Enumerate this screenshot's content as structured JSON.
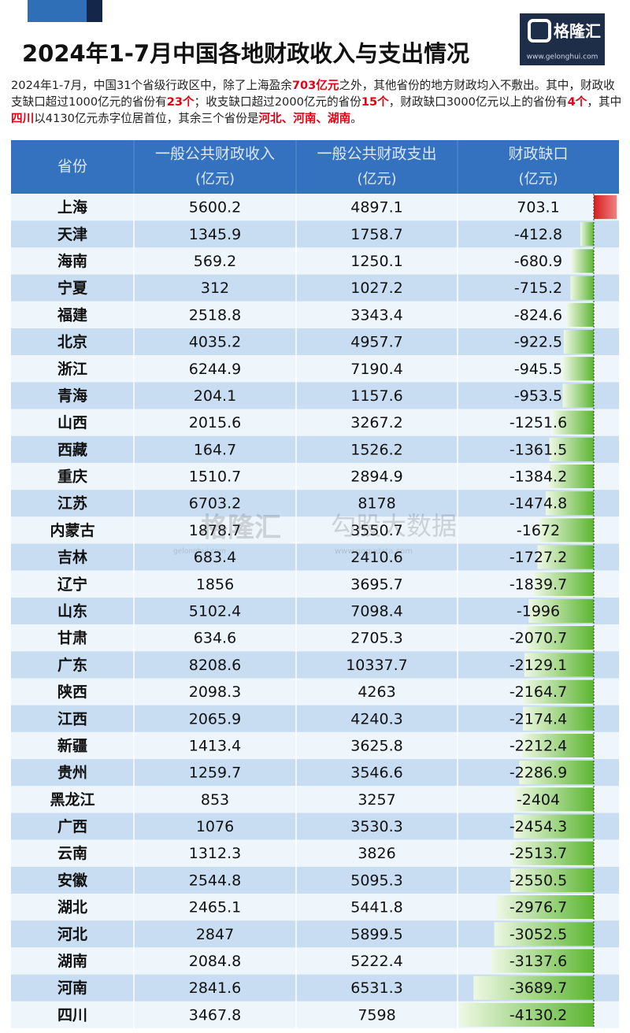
{
  "title": "2024年1-7月中国各地财政收入与支出情况",
  "logo": {
    "name": "格隆汇",
    "url": "www.gelonghui.com"
  },
  "watermark": {
    "brand": "格隆汇",
    "brand_url": "gelonghui.com",
    "partner": "勾股大数据",
    "partner_url": "www.gogudata.com"
  },
  "intro": [
    "2024年1-7月，中国31个省级行政区中，除了上海盈余",
    {
      "text": "703亿元",
      "color": "#e60012"
    },
    "之外，其他省份的地方财政均入不敷出。其中，财政收支缺口超过1000亿元的省份有",
    {
      "text": "23个",
      "color": "#e60012"
    },
    "；收支缺口超过2000亿元的省份",
    {
      "text": "15个",
      "color": "#e60012"
    },
    "，财政缺口3000亿元以上的省份有",
    {
      "text": "4个",
      "color": "#e60012"
    },
    "，其中",
    {
      "text": "四川",
      "color": "#e60012"
    },
    "以4130亿元赤字位居首位，其余三个省份是",
    {
      "text": "河北、河南、湖南",
      "color": "#e60012"
    },
    "。"
  ],
  "table": {
    "columns": [
      {
        "name": "省份"
      },
      {
        "name": "一般公共财政收入",
        "unit": "(亿元)"
      },
      {
        "name": "一般公共财政支出",
        "unit": "(亿元)"
      },
      {
        "name": "财政缺口",
        "unit": "(亿元)"
      }
    ],
    "rows": [
      [
        "上海",
        5600.2,
        4897.1,
        703.1
      ],
      [
        "天津",
        1345.9,
        1758.7,
        -412.8
      ],
      [
        "海南",
        569.2,
        1250.1,
        -680.9
      ],
      [
        "宁夏",
        312,
        1027.2,
        -715.2
      ],
      [
        "福建",
        2518.8,
        3343.4,
        -824.6
      ],
      [
        "北京",
        4035.2,
        4957.7,
        -922.5
      ],
      [
        "浙江",
        6244.9,
        7190.4,
        -945.5
      ],
      [
        "青海",
        204.1,
        1157.6,
        -953.5
      ],
      [
        "山西",
        2015.6,
        3267.2,
        -1251.6
      ],
      [
        "西藏",
        164.7,
        1526.2,
        -1361.5
      ],
      [
        "重庆",
        1510.7,
        2894.9,
        -1384.2
      ],
      [
        "江苏",
        6703.2,
        8178,
        -1474.8
      ],
      [
        "内蒙古",
        1878.7,
        3550.7,
        -1672
      ],
      [
        "吉林",
        683.4,
        2410.6,
        -1727.2
      ],
      [
        "辽宁",
        1856,
        3695.7,
        -1839.7
      ],
      [
        "山东",
        5102.4,
        7098.4,
        -1996
      ],
      [
        "甘肃",
        634.6,
        2705.3,
        -2070.7
      ],
      [
        "广东",
        8208.6,
        10337.7,
        -2129.1
      ],
      [
        "陕西",
        2098.3,
        4263,
        -2164.7
      ],
      [
        "江西",
        2065.9,
        4240.3,
        -2174.4
      ],
      [
        "新疆",
        1413.4,
        3625.8,
        -2212.4
      ],
      [
        "贵州",
        1259.7,
        3546.6,
        -2286.9
      ],
      [
        "黑龙江",
        853,
        3257,
        -2404
      ],
      [
        "广西",
        1076,
        3530.3,
        -2454.3
      ],
      [
        "云南",
        1312.3,
        3826,
        -2513.7
      ],
      [
        "安徽",
        2544.8,
        5095.3,
        -2550.5
      ],
      [
        "湖北",
        2465.1,
        5441.8,
        -2976.7
      ],
      [
        "河北",
        2847,
        5899.5,
        -3052.5
      ],
      [
        "湖南",
        2084.8,
        5222.4,
        -3137.6
      ],
      [
        "河南",
        2841.6,
        6531.3,
        -3689.7
      ],
      [
        "四川",
        3467.8,
        7598,
        -4130.2
      ]
    ]
  }
}
